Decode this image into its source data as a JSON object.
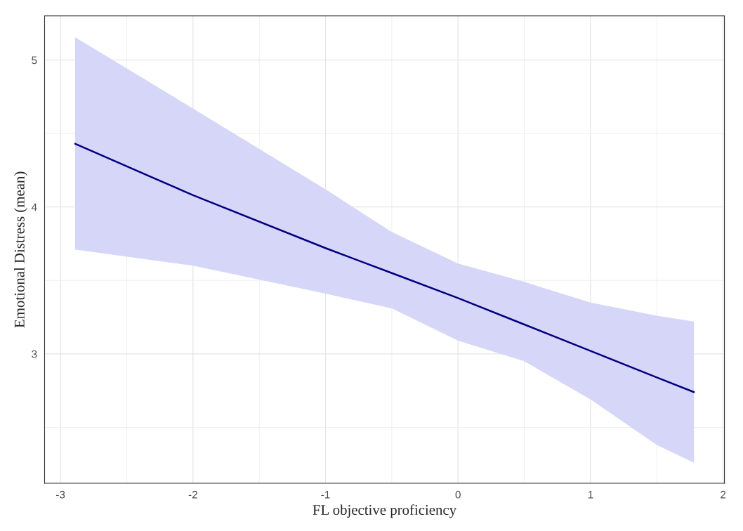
{
  "chart_data": {
    "type": "line",
    "xlabel": "FL objective proficiency",
    "ylabel": "Emotional Distress (mean)",
    "series": [
      {
        "color": "#000080",
        "x": [
          -2.89,
          -2,
          -1,
          -0.5,
          0,
          0.5,
          1,
          1.5,
          1.78
        ],
        "values": [
          4.43,
          4.08,
          3.72,
          3.55,
          3.38,
          3.2,
          3.02,
          2.84,
          2.74
        ],
        "lower": [
          3.71,
          3.6,
          3.41,
          3.31,
          3.09,
          2.95,
          2.69,
          2.38,
          2.26
        ],
        "upper": [
          5.155,
          4.67,
          4.12,
          3.83,
          3.615,
          3.49,
          3.35,
          3.26,
          3.22
        ]
      }
    ],
    "xlim": [
      -3.12,
      2.01
    ],
    "xticks": [
      -3,
      -2,
      -1,
      0,
      1,
      2
    ],
    "ylim": [
      2.12,
      5.3
    ],
    "yticks": [
      3,
      4,
      5
    ],
    "grid": true
  }
}
